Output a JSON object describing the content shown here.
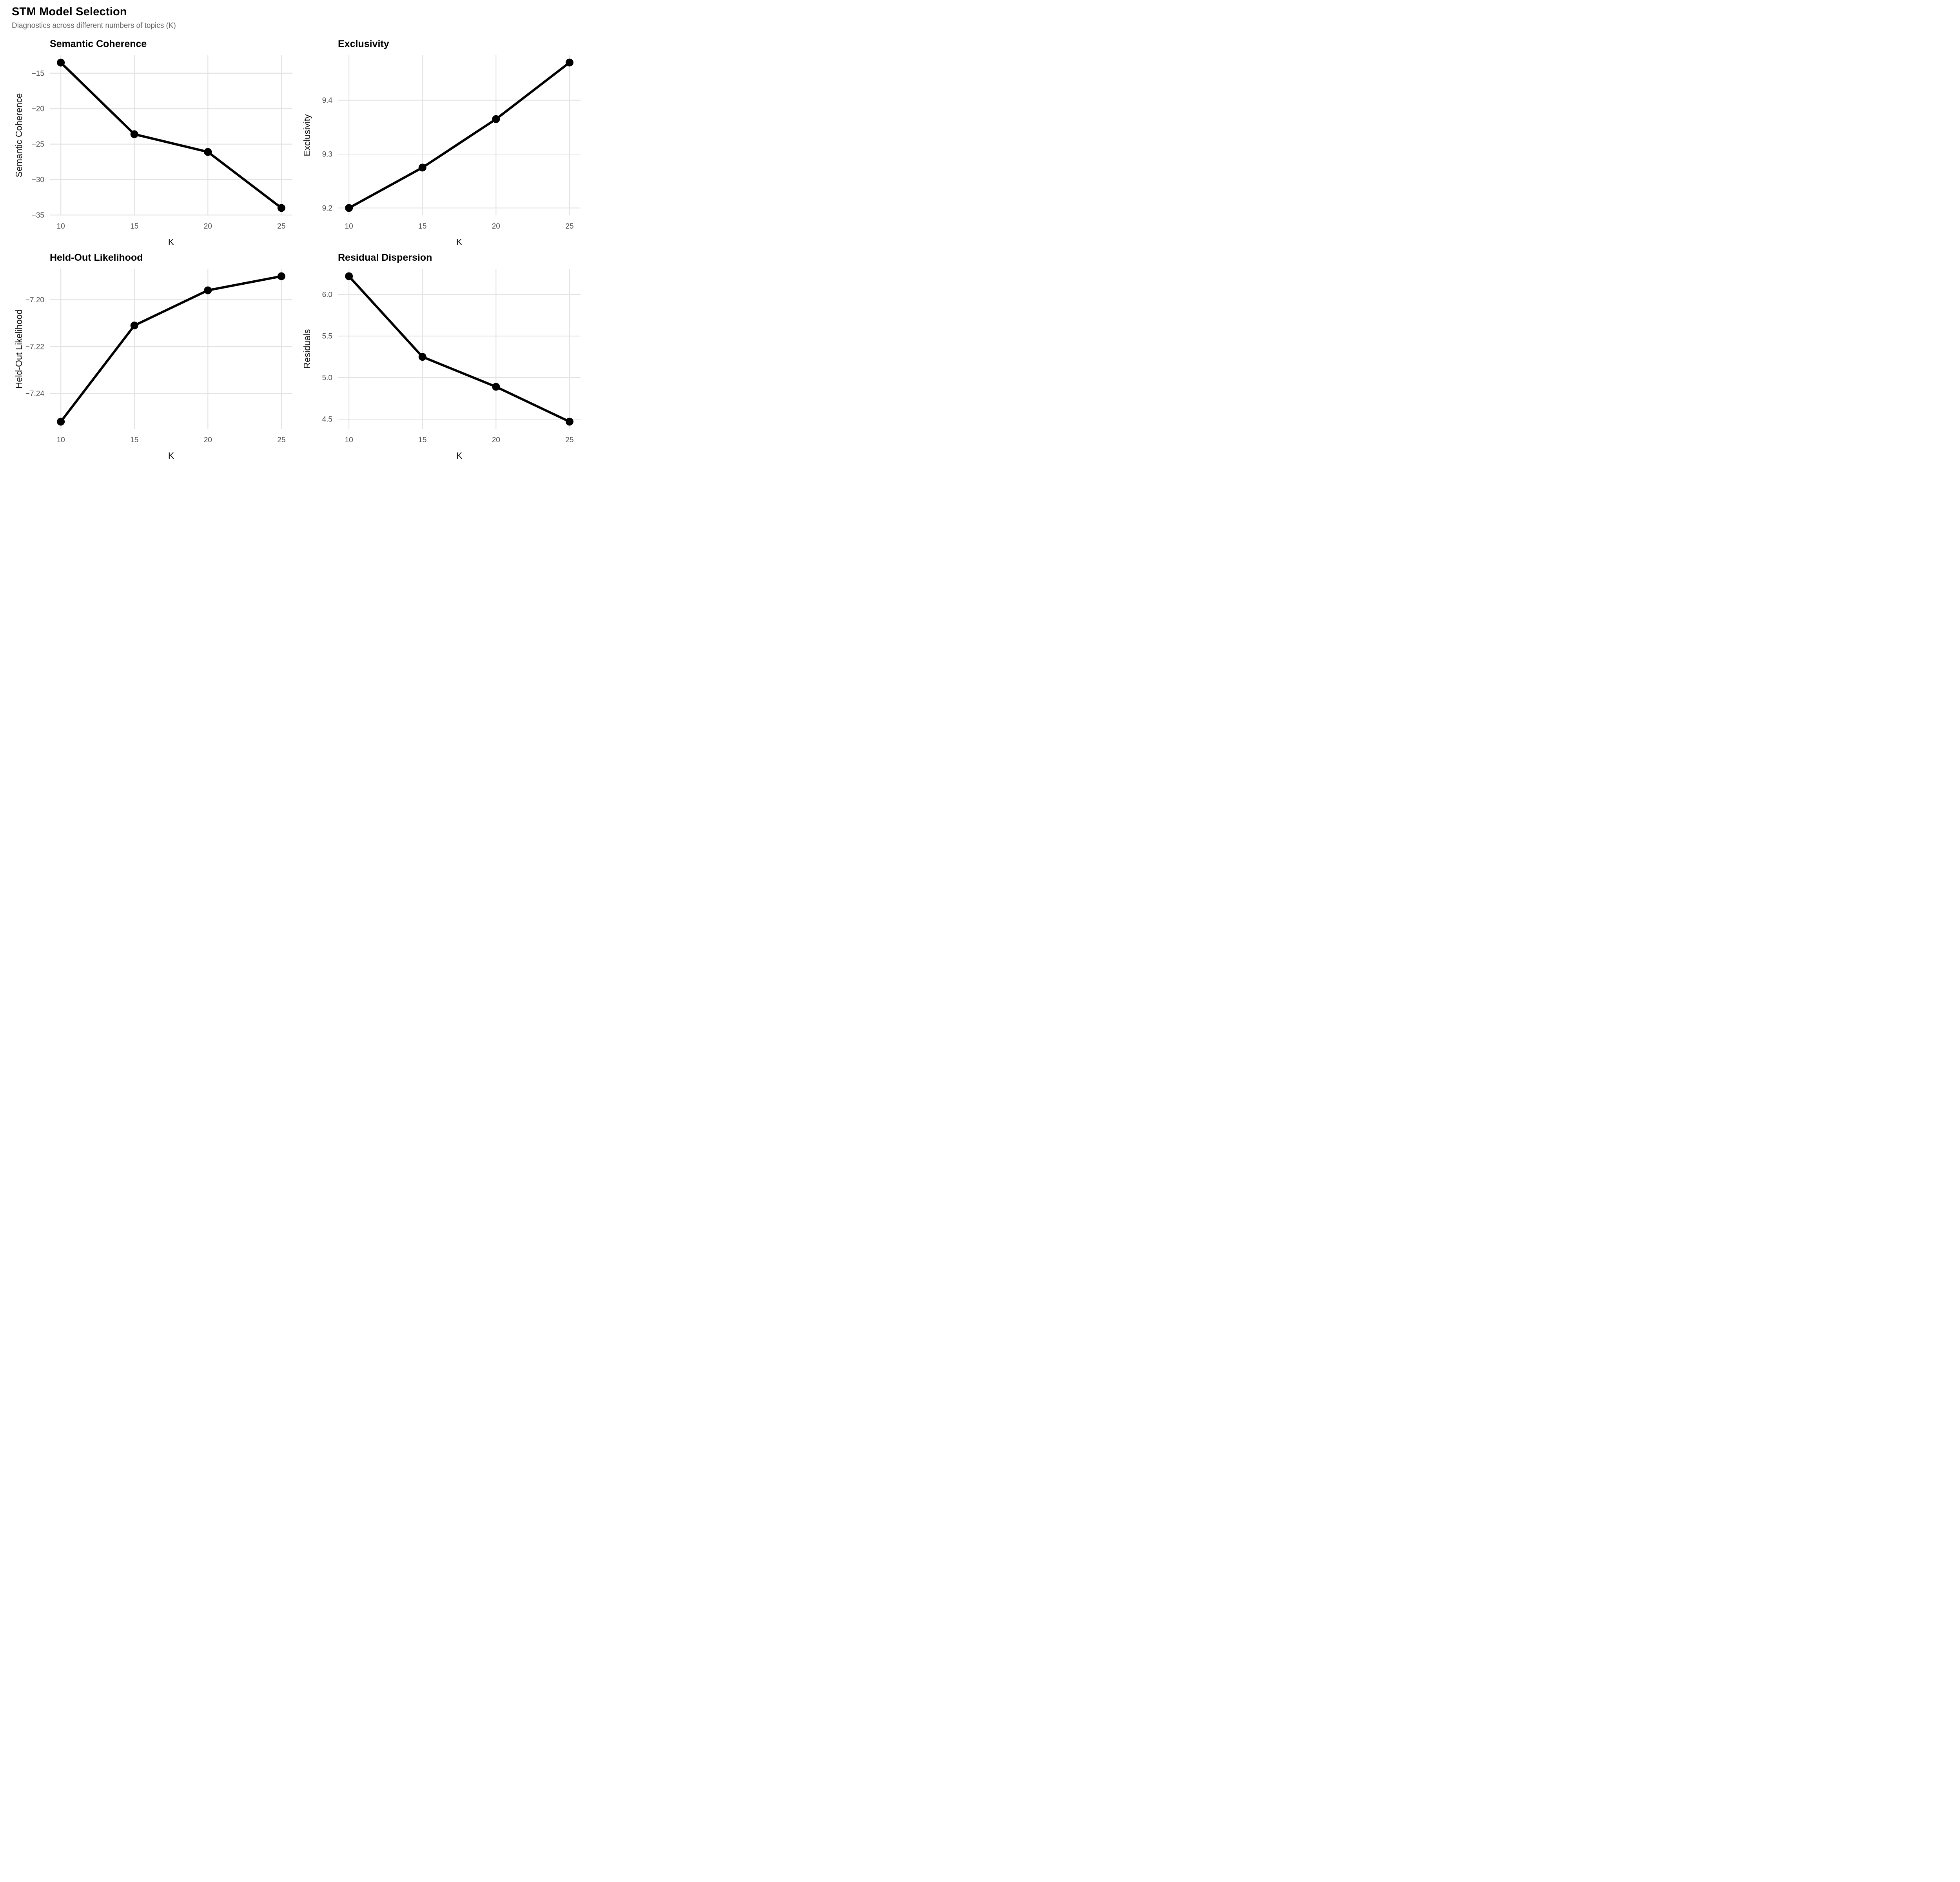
{
  "header": {
    "title": "STM Model Selection",
    "subtitle": "Diagnostics across different numbers of topics (K)"
  },
  "theme": {
    "background": "#ffffff",
    "grid_color": "#e3e3e3",
    "line_color": "#000000",
    "point_color": "#000000",
    "tick_label_color": "#4d4d4d",
    "axis_title_color": "#111111",
    "subtitle_color": "#606060"
  },
  "chart_data": [
    {
      "type": "line",
      "title": "Semantic Coherence",
      "xlabel": "K",
      "ylabel": "Semantic Coherence",
      "x": [
        10,
        15,
        20,
        25
      ],
      "y": [
        -13.5,
        -23.6,
        -26.1,
        -34.0
      ],
      "xlim": [
        9.25,
        25.75
      ],
      "ylim": [
        -35.03,
        -12.47
      ],
      "xticks": {
        "values": [
          10,
          15,
          20,
          25
        ],
        "labels": [
          "10",
          "15",
          "20",
          "25"
        ]
      },
      "yticks": {
        "values": [
          -15,
          -20,
          -25,
          -30,
          -35
        ],
        "labels": [
          "−15",
          "−20",
          "−25",
          "−30",
          "−35"
        ]
      },
      "grid": true,
      "legend": "none"
    },
    {
      "type": "line",
      "title": "Exclusivity",
      "xlabel": "K",
      "ylabel": "Exclusivity",
      "x": [
        10,
        15,
        20,
        25
      ],
      "y": [
        9.2,
        9.275,
        9.365,
        9.47
      ],
      "xlim": [
        9.25,
        25.75
      ],
      "ylim": [
        9.1865,
        9.4835
      ],
      "xticks": {
        "values": [
          10,
          15,
          20,
          25
        ],
        "labels": [
          "10",
          "15",
          "20",
          "25"
        ]
      },
      "yticks": {
        "values": [
          9.2,
          9.3,
          9.4
        ],
        "labels": [
          "9.2",
          "9.3",
          "9.4"
        ]
      },
      "grid": true,
      "legend": "none"
    },
    {
      "type": "line",
      "title": "Held-Out Likelihood",
      "xlabel": "K",
      "ylabel": "Held-Out Likelihood",
      "x": [
        10,
        15,
        20,
        25
      ],
      "y": [
        -7.252,
        -7.211,
        -7.196,
        -7.19
      ],
      "xlim": [
        9.25,
        25.75
      ],
      "ylim": [
        -7.2551,
        -7.1869
      ],
      "xticks": {
        "values": [
          10,
          15,
          20,
          25
        ],
        "labels": [
          "10",
          "15",
          "20",
          "25"
        ]
      },
      "yticks": {
        "values": [
          -7.2,
          -7.22,
          -7.24
        ],
        "labels": [
          "−7.20",
          "−7.22",
          "−7.24"
        ]
      },
      "grid": true,
      "legend": "none"
    },
    {
      "type": "line",
      "title": "Residual Dispersion",
      "xlabel": "K",
      "ylabel": "Residuals",
      "x": [
        10,
        15,
        20,
        25
      ],
      "y": [
        6.22,
        5.25,
        4.89,
        4.47
      ],
      "xlim": [
        9.25,
        25.75
      ],
      "ylim": [
        4.3825,
        6.3075
      ],
      "xticks": {
        "values": [
          10,
          15,
          20,
          25
        ],
        "labels": [
          "10",
          "15",
          "20",
          "25"
        ]
      },
      "yticks": {
        "values": [
          4.5,
          5.0,
          5.5,
          6.0
        ],
        "labels": [
          "4.5",
          "5.0",
          "5.5",
          "6.0"
        ]
      },
      "grid": true,
      "legend": "none"
    }
  ]
}
